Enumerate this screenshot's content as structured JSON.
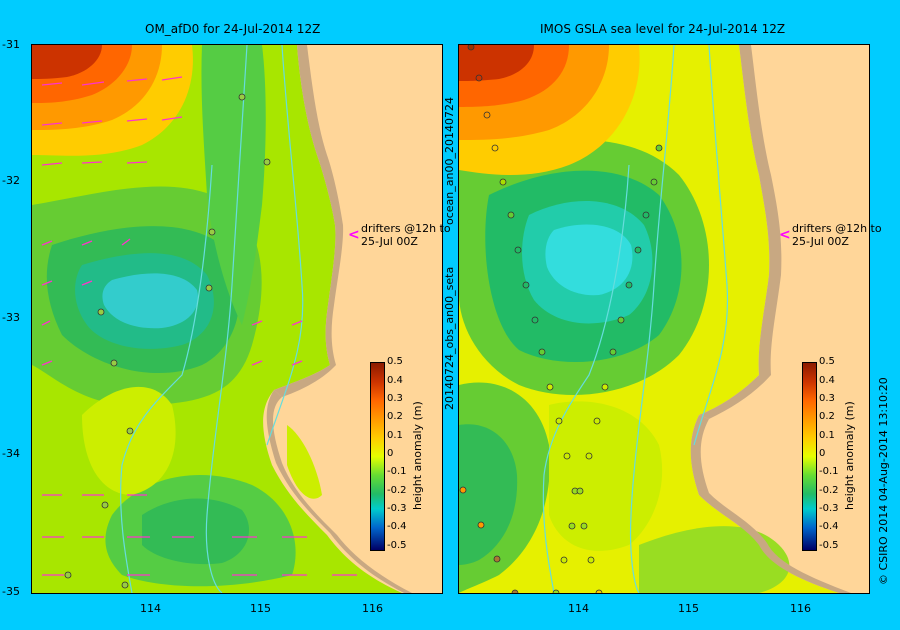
{
  "titles": {
    "left": "OM_afD0 for 24-Jul-2014 12Z",
    "right": "IMOS GSLA sea level  for 24-Jul-2014 12Z"
  },
  "axes": {
    "lat_ticks": [
      "-31",
      "-32",
      "-33",
      "-34",
      "-35"
    ],
    "lon_ticks": [
      "114",
      "115",
      "116"
    ]
  },
  "colorbar": {
    "label": "height anomaly (m)",
    "ticks": [
      "0.5",
      "0.4",
      "0.3",
      "0.2",
      "0.1",
      "0",
      "-0.1",
      "-0.2",
      "-0.3",
      "-0.4",
      "-0.5"
    ]
  },
  "drifter_note": {
    "line1": "drifters @12h to",
    "line2": "25-Jul 00Z"
  },
  "side_labels": {
    "left_vertical": "20140724_obs_an00_seta",
    "left_vertical2": "ocean_an00_20140724",
    "right_vertical": "© CSIRO 2014   04-Aug-2014 13:10:20"
  },
  "colors": {
    "background": "#00ccff",
    "land": "#ffd699",
    "shelf": "#c8a882",
    "arrow": "#ff33cc"
  }
}
